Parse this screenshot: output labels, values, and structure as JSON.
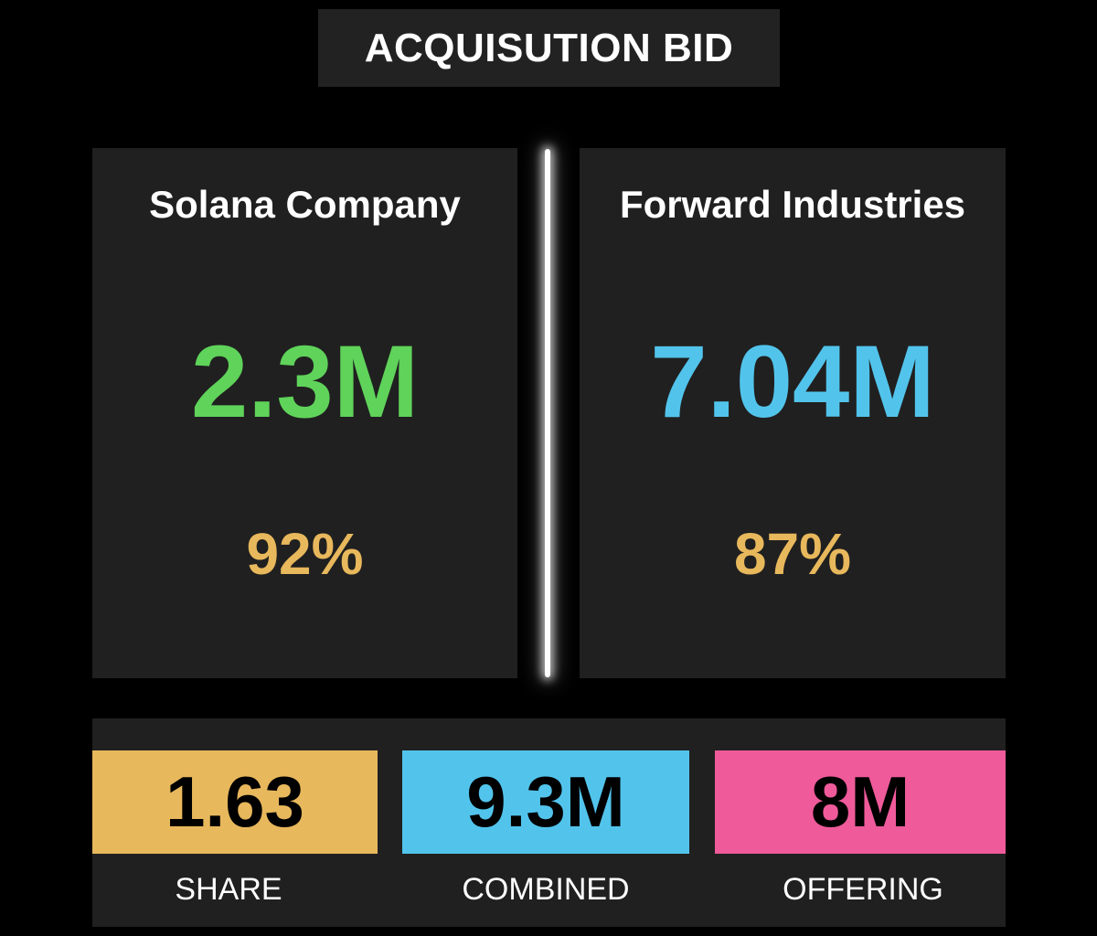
{
  "header": {
    "title": "ACQUISUTION BID"
  },
  "companies": [
    {
      "name": "Solana Company",
      "value": "2.3M",
      "percent": "92%",
      "value_color": "#5fd35a"
    },
    {
      "name": "Forward Industries",
      "value": "7.04M",
      "percent": "87%",
      "value_color": "#52c4ec"
    }
  ],
  "colors": {
    "percent": "#e8b85c",
    "share": "#e8b85c",
    "combined": "#52c4ec",
    "offering": "#ef5a9a"
  },
  "stats": {
    "share": {
      "value": "1.63",
      "label": "SHARE"
    },
    "combined": {
      "value": "9.3M",
      "label": "COMBINED"
    },
    "offering": {
      "value": "8M",
      "label": "OFFERING"
    }
  }
}
